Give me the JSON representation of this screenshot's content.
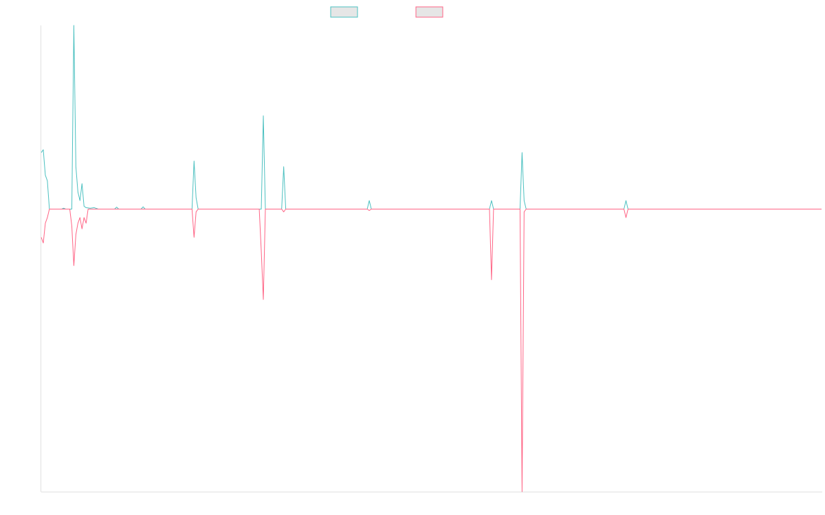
{
  "chart_data": {
    "type": "line",
    "title": "",
    "xlabel": "",
    "ylabel": "",
    "grid": false,
    "legend_position": "top-center",
    "ylim": [
      -100,
      65
    ],
    "x_count": 384,
    "series": [
      {
        "color": "#4bc0c0",
        "points": [
          [
            0,
            20
          ],
          [
            1,
            21
          ],
          [
            2,
            12
          ],
          [
            3,
            10
          ],
          [
            4,
            0
          ],
          [
            5,
            0
          ],
          [
            10,
            0
          ],
          [
            11,
            0.3
          ],
          [
            12,
            0
          ],
          [
            15,
            0
          ],
          [
            16,
            65
          ],
          [
            17,
            15
          ],
          [
            18,
            6
          ],
          [
            19,
            3
          ],
          [
            20,
            9
          ],
          [
            21,
            1
          ],
          [
            22,
            0.5
          ],
          [
            24,
            0.3
          ],
          [
            26,
            0.5
          ],
          [
            28,
            0
          ],
          [
            36,
            0
          ],
          [
            37,
            0.7
          ],
          [
            38,
            0
          ],
          [
            49,
            0
          ],
          [
            50,
            0.8
          ],
          [
            51,
            0
          ],
          [
            74,
            0
          ],
          [
            75,
            17
          ],
          [
            76,
            4
          ],
          [
            77,
            0
          ],
          [
            108,
            0
          ],
          [
            109,
            33
          ],
          [
            110,
            0
          ],
          [
            118,
            0
          ],
          [
            119,
            15
          ],
          [
            120,
            0
          ],
          [
            160,
            0
          ],
          [
            161,
            3
          ],
          [
            162,
            0
          ],
          [
            220,
            0
          ],
          [
            221,
            3
          ],
          [
            222,
            0
          ],
          [
            235,
            0
          ],
          [
            236,
            20
          ],
          [
            237,
            3
          ],
          [
            238,
            0
          ],
          [
            286,
            0
          ],
          [
            287,
            3
          ],
          [
            288,
            0
          ],
          [
            383,
            0
          ]
        ]
      },
      {
        "color": "#ff6384",
        "points": [
          [
            0,
            -10
          ],
          [
            1,
            -12
          ],
          [
            2,
            -5
          ],
          [
            3,
            -3
          ],
          [
            4,
            0
          ],
          [
            5,
            0
          ],
          [
            14,
            0
          ],
          [
            15,
            -6
          ],
          [
            16,
            -20
          ],
          [
            17,
            -9
          ],
          [
            18,
            -5
          ],
          [
            19,
            -3
          ],
          [
            20,
            -7
          ],
          [
            21,
            -3
          ],
          [
            22,
            -5
          ],
          [
            23,
            0
          ],
          [
            74,
            0
          ],
          [
            75,
            -10
          ],
          [
            76,
            -1
          ],
          [
            77,
            0
          ],
          [
            107,
            0
          ],
          [
            108,
            -15
          ],
          [
            109,
            -32
          ],
          [
            110,
            0
          ],
          [
            118,
            0
          ],
          [
            119,
            -1
          ],
          [
            120,
            0
          ],
          [
            160,
            0
          ],
          [
            161,
            -0.5
          ],
          [
            162,
            0
          ],
          [
            220,
            0
          ],
          [
            221,
            -25
          ],
          [
            222,
            0
          ],
          [
            235,
            0
          ],
          [
            236,
            -100
          ],
          [
            237,
            -1
          ],
          [
            238,
            0
          ],
          [
            286,
            0
          ],
          [
            287,
            -3
          ],
          [
            288,
            0
          ],
          [
            383,
            0
          ]
        ]
      }
    ]
  }
}
